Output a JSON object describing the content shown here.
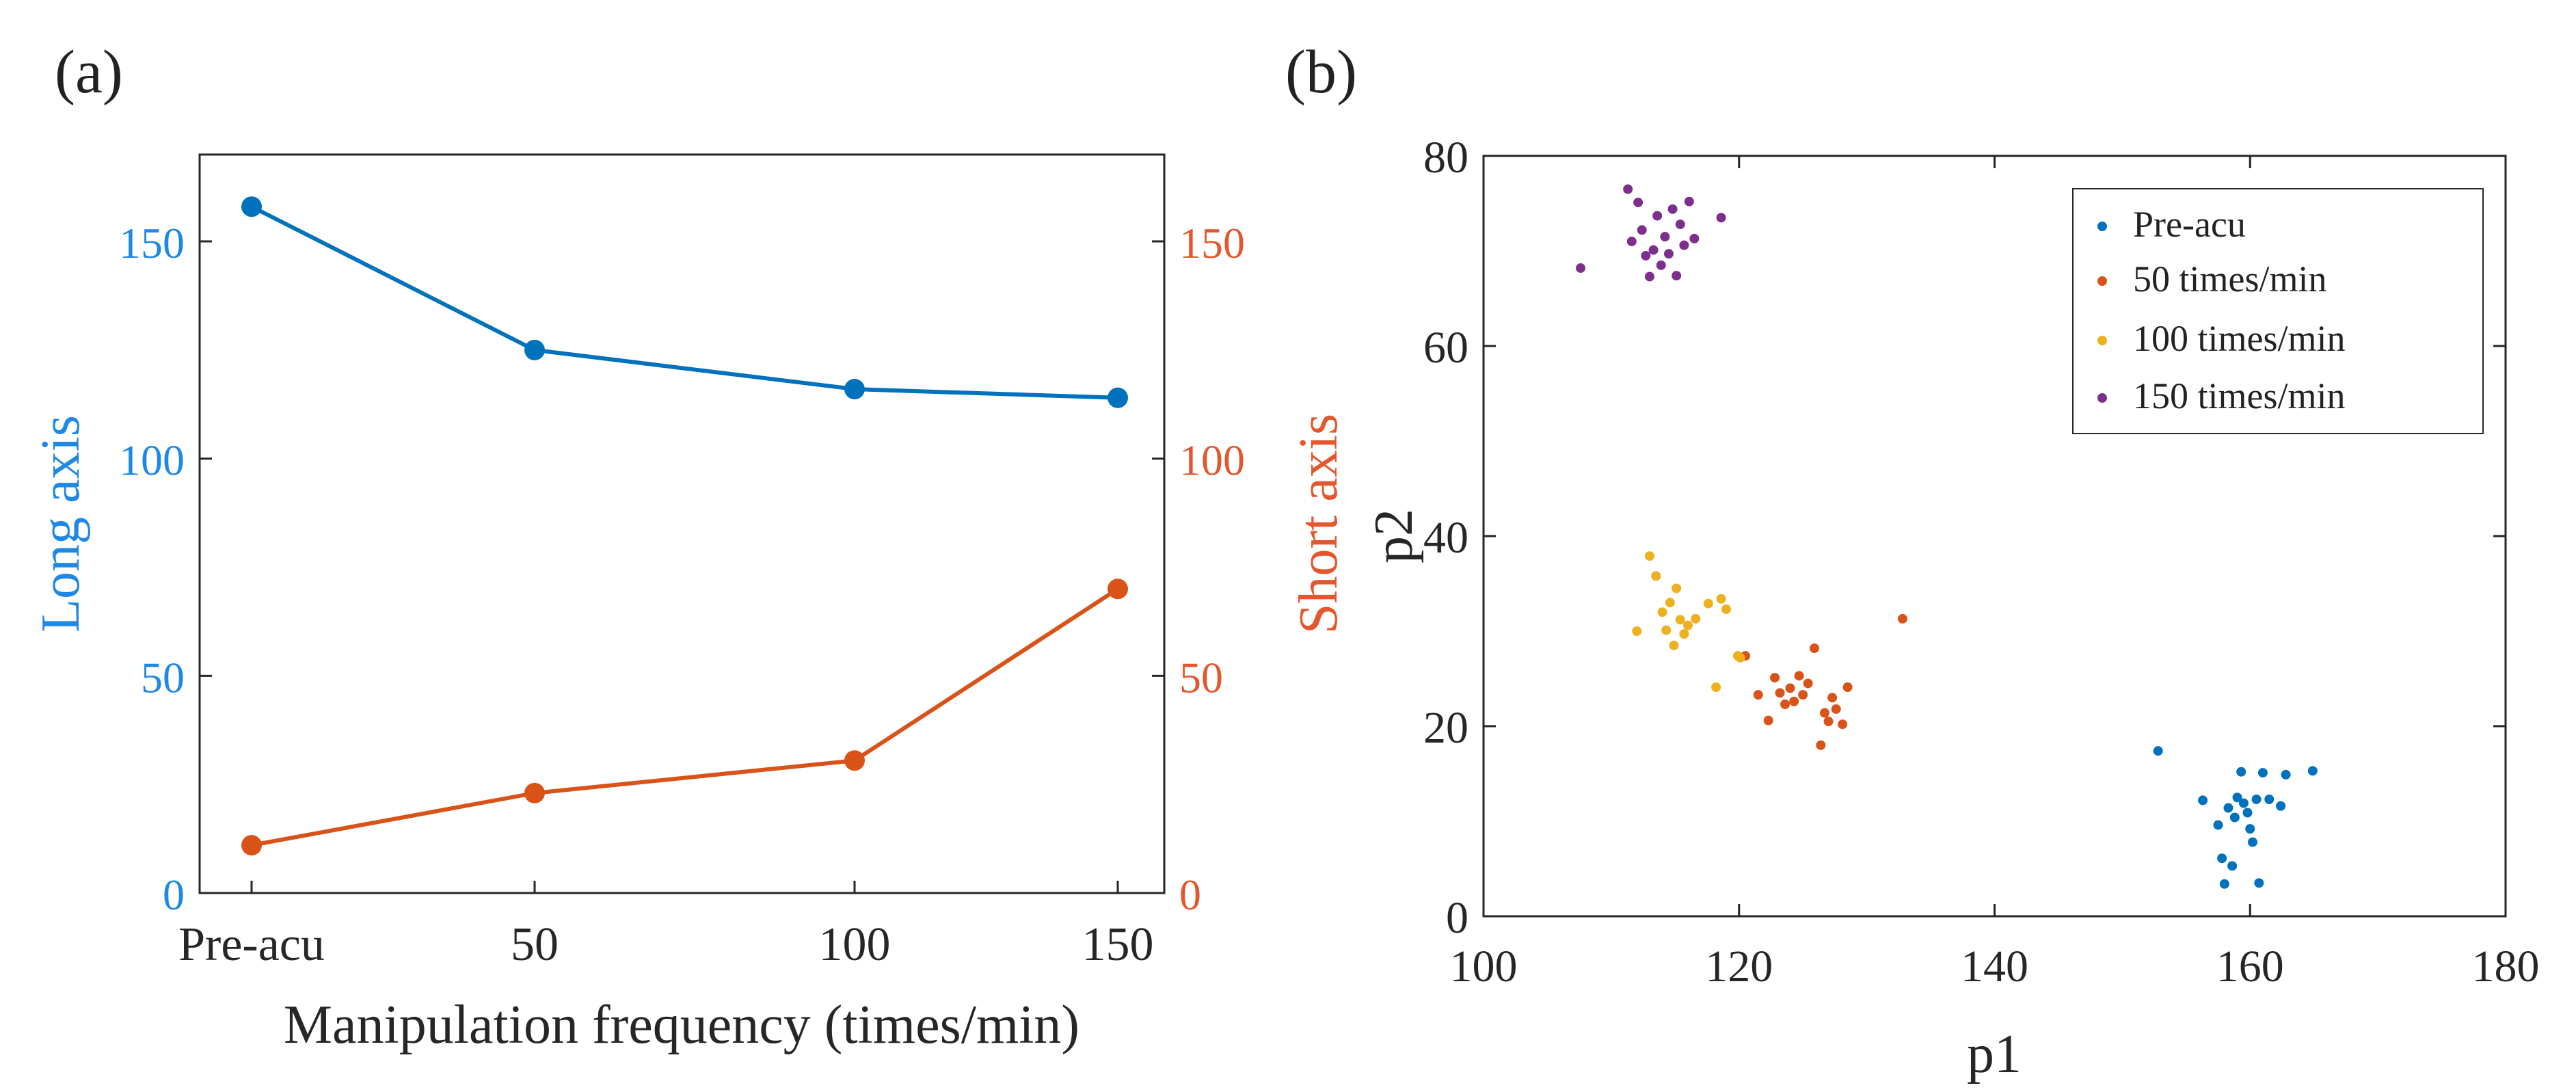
{
  "colors": {
    "blue": "#0072BD",
    "orange": "#D95319",
    "yellow": "#EDB120",
    "purple": "#7E2F8E",
    "long_axis_label": "#1E88E5",
    "short_axis_label": "#E4572E",
    "axis": "#262626"
  },
  "chart_data": [
    {
      "panel_label": "(a)",
      "type": "line",
      "categories": [
        "Pre-acu",
        "50",
        "100",
        "150"
      ],
      "xlabel": "Manipulation frequency (times/min)",
      "left_axis": {
        "label": "Long axis",
        "ylim": [
          0,
          170
        ],
        "ticks": [
          0,
          50,
          100,
          150
        ]
      },
      "right_axis": {
        "label": "Short axis",
        "ylim": [
          0,
          170
        ],
        "ticks": [
          0,
          50,
          100,
          150
        ]
      },
      "series": [
        {
          "name": "Long axis",
          "axis": "left",
          "color": "#0072BD",
          "values": [
            158,
            125,
            116,
            114
          ]
        },
        {
          "name": "Short axis",
          "axis": "right",
          "color": "#D95319",
          "values": [
            11,
            23,
            30.5,
            70
          ]
        }
      ]
    },
    {
      "panel_label": "(b)",
      "type": "scatter",
      "xlabel": "p1",
      "ylabel": "p2",
      "xlim": [
        100,
        180
      ],
      "ylim": [
        0,
        80
      ],
      "xticks": [
        100,
        120,
        140,
        160,
        180
      ],
      "yticks": [
        0,
        20,
        40,
        60,
        80
      ],
      "legend_position": "top-right",
      "series": [
        {
          "name": "Pre-acu",
          "color": "#0072BD",
          "points": [
            [
              152.8,
              17.4
            ],
            [
              156.3,
              12.2
            ],
            [
              157.5,
              9.6
            ],
            [
              157.8,
              6.1
            ],
            [
              158.0,
              3.4
            ],
            [
              158.3,
              11.4
            ],
            [
              158.6,
              5.3
            ],
            [
              158.8,
              10.4
            ],
            [
              159.0,
              12.5
            ],
            [
              159.3,
              15.2
            ],
            [
              159.5,
              11.9
            ],
            [
              159.8,
              10.9
            ],
            [
              160.0,
              9.2
            ],
            [
              160.2,
              7.8
            ],
            [
              160.5,
              12.3
            ],
            [
              160.7,
              3.5
            ],
            [
              161.0,
              15.1
            ],
            [
              161.5,
              12.3
            ],
            [
              162.8,
              14.9
            ],
            [
              162.4,
              11.6
            ],
            [
              164.9,
              15.3
            ]
          ]
        },
        {
          "name": "50 times/min",
          "color": "#D95319",
          "points": [
            [
              120.5,
              27.4
            ],
            [
              121.5,
              23.3
            ],
            [
              122.3,
              20.6
            ],
            [
              122.8,
              25.1
            ],
            [
              123.2,
              23.5
            ],
            [
              123.6,
              22.3
            ],
            [
              124.0,
              24.0
            ],
            [
              124.3,
              22.6
            ],
            [
              124.7,
              25.3
            ],
            [
              125.0,
              23.3
            ],
            [
              125.4,
              24.5
            ],
            [
              125.9,
              28.2
            ],
            [
              126.4,
              18.0
            ],
            [
              126.7,
              21.4
            ],
            [
              127.0,
              20.5
            ],
            [
              127.3,
              23.0
            ],
            [
              127.6,
              21.8
            ],
            [
              128.1,
              20.2
            ],
            [
              128.5,
              24.1
            ],
            [
              132.8,
              31.3
            ]
          ]
        },
        {
          "name": "100 times/min",
          "color": "#EDB120",
          "points": [
            [
              112.0,
              30.0
            ],
            [
              113.0,
              37.9
            ],
            [
              113.5,
              35.8
            ],
            [
              114.0,
              32.0
            ],
            [
              114.3,
              30.1
            ],
            [
              114.6,
              33.0
            ],
            [
              114.9,
              28.5
            ],
            [
              115.1,
              34.5
            ],
            [
              115.4,
              31.2
            ],
            [
              115.7,
              29.7
            ],
            [
              116.0,
              30.6
            ],
            [
              116.6,
              31.3
            ],
            [
              117.6,
              32.9
            ],
            [
              118.2,
              24.1
            ],
            [
              118.6,
              33.4
            ],
            [
              119.0,
              32.3
            ],
            [
              119.9,
              27.4
            ],
            [
              120.1,
              27.2
            ]
          ]
        },
        {
          "name": "150 times/min",
          "color": "#7E2F8E",
          "points": [
            [
              107.6,
              68.2
            ],
            [
              111.3,
              76.5
            ],
            [
              111.6,
              71.0
            ],
            [
              112.1,
              75.1
            ],
            [
              112.4,
              72.2
            ],
            [
              112.7,
              69.5
            ],
            [
              113.0,
              67.3
            ],
            [
              113.3,
              70.1
            ],
            [
              113.6,
              73.7
            ],
            [
              113.9,
              68.5
            ],
            [
              114.2,
              71.5
            ],
            [
              114.5,
              69.7
            ],
            [
              114.8,
              74.4
            ],
            [
              115.1,
              67.4
            ],
            [
              115.4,
              72.8
            ],
            [
              115.7,
              70.6
            ],
            [
              116.1,
              75.2
            ],
            [
              116.5,
              71.3
            ],
            [
              118.6,
              73.5
            ]
          ]
        }
      ]
    }
  ]
}
